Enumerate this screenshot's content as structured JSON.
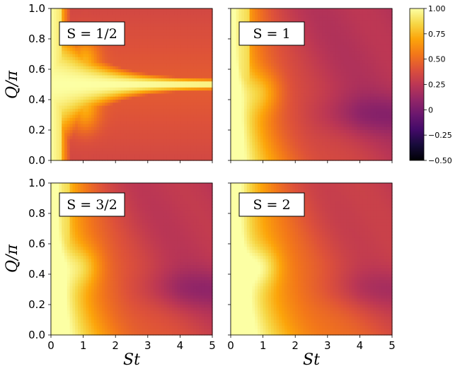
{
  "chart_data": {
    "type": "heatmap",
    "xlabel": "St",
    "ylabel": "Q/π",
    "xlim": [
      0,
      5
    ],
    "ylim": [
      0,
      1
    ],
    "x_ticks": [
      "0",
      "1",
      "2",
      "3",
      "4",
      "5"
    ],
    "y_ticks": [
      "0.0",
      "0.2",
      "0.4",
      "0.6",
      "0.8",
      "1.0"
    ],
    "colormap": "inferno",
    "colorbar": {
      "range": [
        -0.5,
        1.0
      ],
      "ticks": [
        "1.00",
        "0.75",
        "0.50",
        "0.25",
        "0",
        "−0.25",
        "−0.50"
      ],
      "tick_values": [
        1.0,
        0.75,
        0.5,
        0.25,
        0,
        -0.25,
        -0.5
      ]
    },
    "panels": [
      {
        "label": "S = 1/2",
        "spin": 0.5
      },
      {
        "label": "S = 1",
        "spin": 1
      },
      {
        "label": "S = 3/2",
        "spin": 1.5
      },
      {
        "label": "S = 2",
        "spin": 2
      }
    ]
  }
}
